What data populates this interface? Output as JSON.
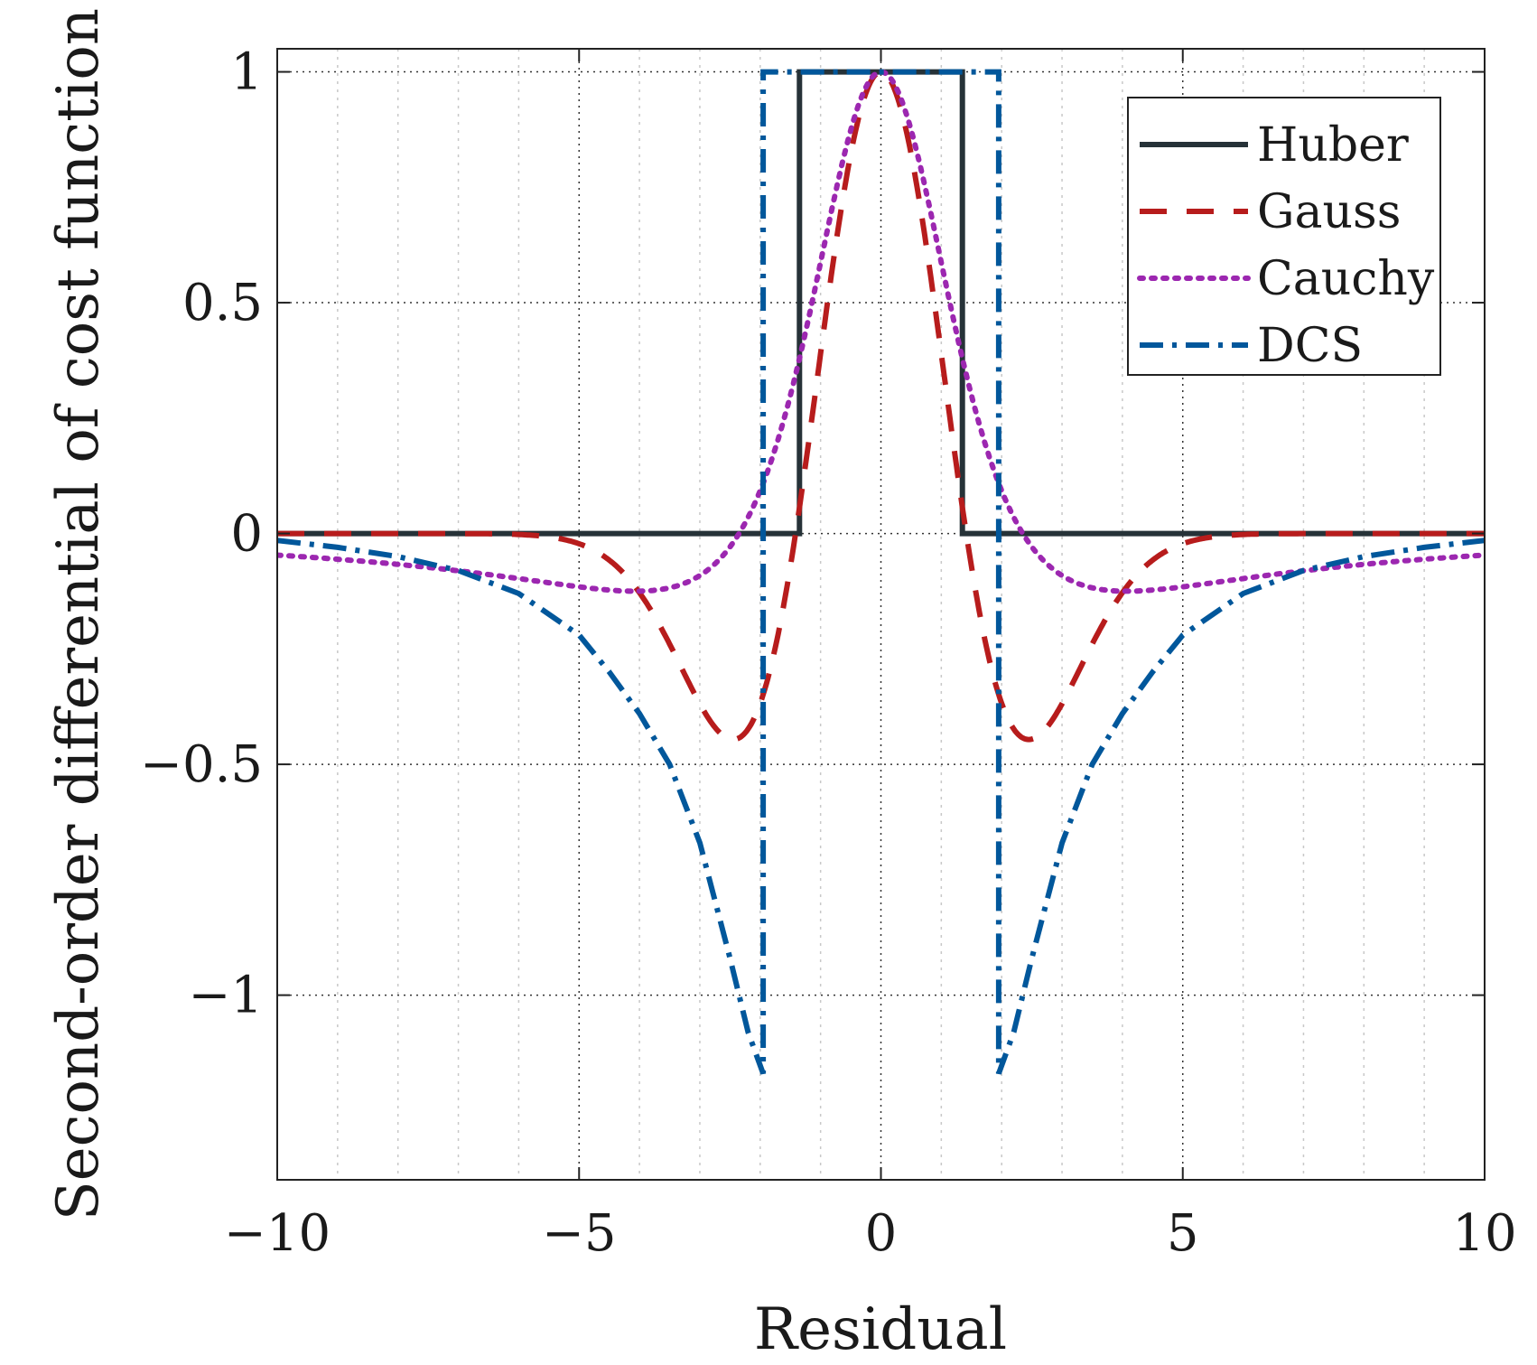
{
  "chart_data": {
    "type": "line",
    "title": "",
    "xlabel": "Residual",
    "ylabel": "Second-order differential of cost function",
    "xlim": [
      -10,
      10
    ],
    "ylim": [
      -1.4,
      1.05
    ],
    "xticks": [
      -10,
      -5,
      0,
      5,
      10
    ],
    "xtick_labels": [
      "−10",
      "−5",
      "0",
      "5",
      "10"
    ],
    "yticks": [
      -1,
      -0.5,
      0,
      0.5,
      1
    ],
    "ytick_labels": [
      "−1",
      "−0.5",
      "0",
      "0.5",
      "1"
    ],
    "x_minor_step": 1,
    "grid": true,
    "legend_position": "top-right",
    "series": [
      {
        "name": "Huber",
        "style": "solid",
        "color": "#263238",
        "x": [
          -10,
          -1.35,
          -1.35,
          1.35,
          1.35,
          10
        ],
        "y": [
          0,
          0,
          1,
          1,
          0,
          0
        ]
      },
      {
        "name": "Gauss",
        "style": "dashed",
        "color": "#b71c1c",
        "function": "gauss",
        "sigma": 1.414
      },
      {
        "name": "Cauchy",
        "style": "dotted",
        "color": "#9c27b0",
        "function": "cauchy",
        "c": 2.35
      },
      {
        "name": "DCS",
        "style": "dashdot",
        "color": "#01579b",
        "x": [
          -10,
          -9,
          -8,
          -7,
          -6,
          -5,
          -4.5,
          -4,
          -3.5,
          -3,
          -2.5,
          -2.2,
          -1.95,
          -1.95,
          1.95,
          1.95,
          2.2,
          2.5,
          3,
          3.5,
          4,
          4.5,
          5,
          6,
          7,
          8,
          9,
          10
        ],
        "y": [
          -0.015,
          -0.03,
          -0.05,
          -0.08,
          -0.13,
          -0.22,
          -0.3,
          -0.39,
          -0.5,
          -0.67,
          -0.92,
          -1.08,
          -1.17,
          1,
          1,
          -1.17,
          -1.08,
          -0.92,
          -0.67,
          -0.5,
          -0.39,
          -0.3,
          -0.22,
          -0.13,
          -0.08,
          -0.05,
          -0.03,
          -0.015
        ]
      }
    ]
  }
}
